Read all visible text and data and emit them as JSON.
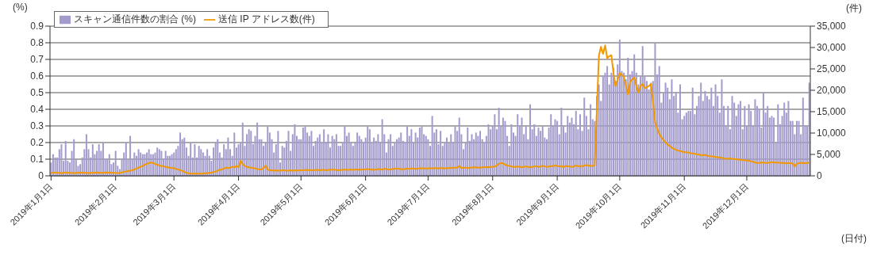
{
  "chart_data": {
    "type": "bar",
    "ylabel": "(%)",
    "y2label": "(件)",
    "xlabel": "(日付)",
    "categories": [
      "2019年1月1日",
      null,
      null,
      null,
      null,
      null,
      null,
      null,
      null,
      null,
      null,
      null,
      null,
      null,
      null,
      null,
      null,
      null,
      null,
      null,
      null,
      null,
      null,
      null,
      null,
      null,
      null,
      null,
      null,
      null,
      null,
      "2019年2月1日",
      null,
      null,
      null,
      null,
      null,
      null,
      null,
      null,
      null,
      null,
      null,
      null,
      null,
      null,
      null,
      null,
      null,
      null,
      null,
      null,
      null,
      null,
      null,
      null,
      null,
      null,
      null,
      "2019年3月1日",
      null,
      null,
      null,
      null,
      null,
      null,
      null,
      null,
      null,
      null,
      null,
      null,
      null,
      null,
      null,
      null,
      null,
      null,
      null,
      null,
      null,
      null,
      null,
      null,
      null,
      null,
      null,
      null,
      null,
      null,
      "2019年4月1日",
      null,
      null,
      null,
      null,
      null,
      null,
      null,
      null,
      null,
      null,
      null,
      null,
      null,
      null,
      null,
      null,
      null,
      null,
      null,
      null,
      null,
      null,
      null,
      null,
      null,
      null,
      null,
      null,
      null,
      "2019年5月1日",
      null,
      null,
      null,
      null,
      null,
      null,
      null,
      null,
      null,
      null,
      null,
      null,
      null,
      null,
      null,
      null,
      null,
      null,
      null,
      null,
      null,
      null,
      null,
      null,
      null,
      null,
      null,
      null,
      null,
      null,
      "2019年6月1日",
      null,
      null,
      null,
      null,
      null,
      null,
      null,
      null,
      null,
      null,
      null,
      null,
      null,
      null,
      null,
      null,
      null,
      null,
      null,
      null,
      null,
      null,
      null,
      null,
      null,
      null,
      null,
      null,
      null,
      "2019年7月1日",
      null,
      null,
      null,
      null,
      null,
      null,
      null,
      null,
      null,
      null,
      null,
      null,
      null,
      null,
      null,
      null,
      null,
      null,
      null,
      null,
      null,
      null,
      null,
      null,
      null,
      null,
      null,
      null,
      null,
      null,
      "2019年8月1日",
      null,
      null,
      null,
      null,
      null,
      null,
      null,
      null,
      null,
      null,
      null,
      null,
      null,
      null,
      null,
      null,
      null,
      null,
      null,
      null,
      null,
      null,
      null,
      null,
      null,
      null,
      null,
      null,
      null,
      null,
      "2019年9月1日",
      null,
      null,
      null,
      null,
      null,
      null,
      null,
      null,
      null,
      null,
      null,
      null,
      null,
      null,
      null,
      null,
      null,
      null,
      null,
      null,
      null,
      null,
      null,
      null,
      null,
      null,
      null,
      null,
      null,
      "2019年10月1日",
      null,
      null,
      null,
      null,
      null,
      null,
      null,
      null,
      null,
      null,
      null,
      null,
      null,
      null,
      null,
      null,
      null,
      null,
      null,
      null,
      null,
      null,
      null,
      null,
      null,
      null,
      null,
      null,
      null,
      null,
      "2019年11月1日",
      null,
      null,
      null,
      null,
      null,
      null,
      null,
      null,
      null,
      null,
      null,
      null,
      null,
      null,
      null,
      null,
      null,
      null,
      null,
      null,
      null,
      null,
      null,
      null,
      null,
      null,
      null,
      null,
      null,
      "2019年12月1日",
      null,
      null,
      null,
      null,
      null,
      null,
      null,
      null,
      null,
      null,
      null,
      null,
      null,
      null,
      null,
      null,
      null,
      null,
      null,
      null,
      null,
      null,
      null,
      null,
      null,
      null,
      null,
      null,
      null,
      null
    ],
    "series": [
      {
        "name": "スキャン通信件数の割合 (%)",
        "color": "#a39bcb",
        "values": [
          0.08,
          0.13,
          0.11,
          0.11,
          0.16,
          0.19,
          0.09,
          0.21,
          0.09,
          0.08,
          0.15,
          0.22,
          0.1,
          0.06,
          0.07,
          0.11,
          0.16,
          0.25,
          0.16,
          0.11,
          0.19,
          0.13,
          0.15,
          0.19,
          0.15,
          0.2,
          0.1,
          0.1,
          0.13,
          0.07,
          0.08,
          0.15,
          0.06,
          0.04,
          0.1,
          0.14,
          0.2,
          0.1,
          0.24,
          0.1,
          0.14,
          0.12,
          0.16,
          0.14,
          0.13,
          0.13,
          0.14,
          0.16,
          0.13,
          0.13,
          0.14,
          0.17,
          0.16,
          0.15,
          0.1,
          0.15,
          0.12,
          0.12,
          0.13,
          0.14,
          0.16,
          0.18,
          0.26,
          0.22,
          0.23,
          0.17,
          0.12,
          0.2,
          0.11,
          0.19,
          0.11,
          0.18,
          0.16,
          0.14,
          0.12,
          0.16,
          0.12,
          0.09,
          0.17,
          0.2,
          0.22,
          0.14,
          0.11,
          0.19,
          0.16,
          0.23,
          0.16,
          0.12,
          0.26,
          0.17,
          0.19,
          0.2,
          0.32,
          0.18,
          0.25,
          0.28,
          0.27,
          0.19,
          0.24,
          0.32,
          0.22,
          0.22,
          0.18,
          0.2,
          0.3,
          0.26,
          0.22,
          0.14,
          0.19,
          0.27,
          0.08,
          0.18,
          0.17,
          0.21,
          0.27,
          0.15,
          0.25,
          0.31,
          0.24,
          0.22,
          0.22,
          0.29,
          0.3,
          0.26,
          0.24,
          0.27,
          0.18,
          0.21,
          0.23,
          0.25,
          0.2,
          0.28,
          0.2,
          0.25,
          0.17,
          0.24,
          0.22,
          0.25,
          0.18,
          0.18,
          0.2,
          0.3,
          0.24,
          0.26,
          0.2,
          0.18,
          0.2,
          0.26,
          0.24,
          0.22,
          0.2,
          0.23,
          0.3,
          0.28,
          0.2,
          0.23,
          0.21,
          0.25,
          0.2,
          0.34,
          0.25,
          0.14,
          0.22,
          0.25,
          0.18,
          0.2,
          0.22,
          0.23,
          0.26,
          0.21,
          0.2,
          0.3,
          0.24,
          0.28,
          0.2,
          0.26,
          0.23,
          0.29,
          0.3,
          0.25,
          0.24,
          0.22,
          0.18,
          0.36,
          0.26,
          0.28,
          0.19,
          0.27,
          0.18,
          0.2,
          0.23,
          0.2,
          0.25,
          0.2,
          0.3,
          0.27,
          0.35,
          0.25,
          0.16,
          0.2,
          0.29,
          0.21,
          0.25,
          0.22,
          0.26,
          0.24,
          0.27,
          0.22,
          0.2,
          0.24,
          0.31,
          0.28,
          0.3,
          0.37,
          0.28,
          0.41,
          0.3,
          0.35,
          0.33,
          0.24,
          0.18,
          0.31,
          0.26,
          0.24,
          0.37,
          0.3,
          0.35,
          0.25,
          0.3,
          0.22,
          0.43,
          0.28,
          0.31,
          0.24,
          0.29,
          0.27,
          0.3,
          0.23,
          0.22,
          0.29,
          0.37,
          0.3,
          0.34,
          0.33,
          0.25,
          0.41,
          0.3,
          0.26,
          0.36,
          0.32,
          0.35,
          0.31,
          0.39,
          0.28,
          0.37,
          0.27,
          0.47,
          0.36,
          0.28,
          0.43,
          0.34,
          0.33,
          0.48,
          0.55,
          0.45,
          0.6,
          0.62,
          0.66,
          0.55,
          0.62,
          0.65,
          0.57,
          0.67,
          0.82,
          0.63,
          0.62,
          0.58,
          0.71,
          0.61,
          0.63,
          0.73,
          0.62,
          0.55,
          0.6,
          0.78,
          0.6,
          0.57,
          0.52,
          0.56,
          0.57,
          0.8,
          0.61,
          0.66,
          0.44,
          0.5,
          0.56,
          0.53,
          0.46,
          0.58,
          0.48,
          0.5,
          0.38,
          0.55,
          0.34,
          0.36,
          0.38,
          0.39,
          0.39,
          0.53,
          0.37,
          0.42,
          0.48,
          0.56,
          0.45,
          0.51,
          0.48,
          0.46,
          0.53,
          0.42,
          0.55,
          0.48,
          0.38,
          0.58,
          0.42,
          0.3,
          0.42,
          0.28,
          0.48,
          0.44,
          0.36,
          0.43,
          0.45,
          0.28,
          0.42,
          0.3,
          0.43,
          0.39,
          0.3,
          0.46,
          0.42,
          0.4,
          0.29,
          0.5,
          0.38,
          0.42,
          0.35,
          0.36,
          0.35,
          0.2,
          0.43,
          0.31,
          0.36,
          0.44,
          0.38,
          0.45,
          0.33,
          0.33,
          0.25,
          0.33,
          0.33,
          0.25,
          0.47,
          0.3,
          0.3,
          0.56
        ]
      },
      {
        "name": "送信 IP アドレス数(件)",
        "type": "line",
        "axis": "y2",
        "color": "#f39800",
        "values": [
          700,
          700,
          800,
          700,
          700,
          600,
          700,
          800,
          700,
          700,
          700,
          600,
          700,
          700,
          800,
          700,
          700,
          700,
          600,
          700,
          700,
          700,
          800,
          700,
          700,
          700,
          800,
          700,
          800,
          700,
          700,
          700,
          600,
          700,
          800,
          900,
          1000,
          1100,
          1200,
          1300,
          1500,
          1700,
          1900,
          2100,
          2300,
          2600,
          2800,
          3000,
          3100,
          3000,
          2800,
          2600,
          2400,
          2300,
          2200,
          2100,
          2000,
          1900,
          1800,
          1800,
          1600,
          1500,
          1300,
          1200,
          900,
          700,
          600,
          500,
          500,
          500,
          500,
          500,
          500,
          500,
          600,
          600,
          700,
          700,
          900,
          1000,
          1200,
          1400,
          1500,
          1700,
          1900,
          1800,
          1900,
          2100,
          2000,
          2300,
          2000,
          3500,
          2800,
          2300,
          2100,
          2000,
          1900,
          1800,
          1700,
          1600,
          1500,
          1500,
          1800,
          2400,
          1500,
          1300,
          1300,
          1200,
          1300,
          1200,
          1200,
          1300,
          1300,
          1200,
          1200,
          1300,
          1200,
          1300,
          1200,
          1300,
          1300,
          1300,
          1400,
          1300,
          1400,
          1300,
          1300,
          1400,
          1400,
          1300,
          1400,
          1400,
          1300,
          1400,
          1400,
          1500,
          1400,
          1400,
          1300,
          1400,
          1400,
          1500,
          1400,
          1400,
          1500,
          1400,
          1500,
          1500,
          1400,
          1500,
          1500,
          1500,
          1600,
          1500,
          1500,
          1400,
          1500,
          1600,
          1500,
          1500,
          1600,
          1600,
          1500,
          1500,
          1600,
          1600,
          1700,
          1600,
          1600,
          1500,
          1600,
          1700,
          1600,
          1700,
          1700,
          1600,
          1700,
          1700,
          1800,
          1700,
          1700,
          1700,
          1800,
          1700,
          1800,
          1800,
          1700,
          1800,
          1800,
          1700,
          1800,
          1800,
          1900,
          1800,
          1900,
          1900,
          2300,
          1800,
          1900,
          1900,
          1800,
          1900,
          1900,
          2000,
          2000,
          1900,
          1900,
          2000,
          2000,
          2100,
          2000,
          2100,
          2100,
          2200,
          2400,
          2800,
          3000,
          2900,
          2600,
          2400,
          2300,
          2200,
          2100,
          2100,
          2200,
          2100,
          2000,
          2100,
          2200,
          2100,
          2000,
          2100,
          2200,
          2200,
          2100,
          2200,
          2300,
          2200,
          2100,
          2200,
          2200,
          2300,
          2400,
          2300,
          2200,
          2300,
          2000,
          2300,
          2200,
          2200,
          2100,
          2200,
          2400,
          2200,
          2300,
          2200,
          2400,
          2500,
          2400,
          2300,
          2300,
          2400,
          15000,
          28000,
          30200,
          28500,
          30500,
          27500,
          28000,
          28200,
          24000,
          21000,
          22500,
          24000,
          23600,
          23200,
          21000,
          19000,
          22000,
          22500,
          23000,
          21000,
          19500,
          21000,
          21500,
          20500,
          20700,
          21000,
          21500,
          17000,
          12500,
          11000,
          9800,
          9000,
          8400,
          7800,
          7300,
          7000,
          6600,
          6300,
          6100,
          5900,
          5800,
          5700,
          5500,
          5500,
          5400,
          5300,
          5200,
          5200,
          5000,
          5000,
          4800,
          4800,
          4900,
          4700,
          4600,
          4600,
          4500,
          4400,
          4300,
          4300,
          4200,
          4100,
          4000,
          4000,
          4100,
          4000,
          3900,
          3900,
          3800,
          3700,
          3700,
          3600,
          3600,
          3500,
          3400,
          3300,
          3100,
          3000,
          3000,
          3100,
          3100,
          3000,
          3000,
          3100,
          3200,
          3100,
          3100,
          3100,
          3000,
          3000,
          3000,
          2900,
          3000,
          2900,
          2900,
          2200,
          2800,
          3000,
          3000,
          3000,
          2900,
          3000,
          3100
        ]
      }
    ],
    "ylim": [
      0,
      0.9
    ],
    "yticks": [
      0,
      0.1,
      0.2,
      0.3,
      0.4,
      0.5,
      0.6,
      0.7,
      0.8,
      0.9
    ],
    "y2lim": [
      0,
      35000
    ],
    "y2ticks": [
      0,
      {
        "value": 5000,
        "label": "5,000"
      },
      {
        "value": 10000,
        "label": "10,000"
      },
      {
        "value": 15000,
        "label": "15,000"
      },
      {
        "value": 20000,
        "label": "20,000"
      },
      {
        "value": 25000,
        "label": "25,000"
      },
      {
        "value": 30000,
        "label": "30,000"
      },
      {
        "value": 35000,
        "label": "35,000"
      }
    ],
    "grid": "y",
    "legend": "top left"
  }
}
